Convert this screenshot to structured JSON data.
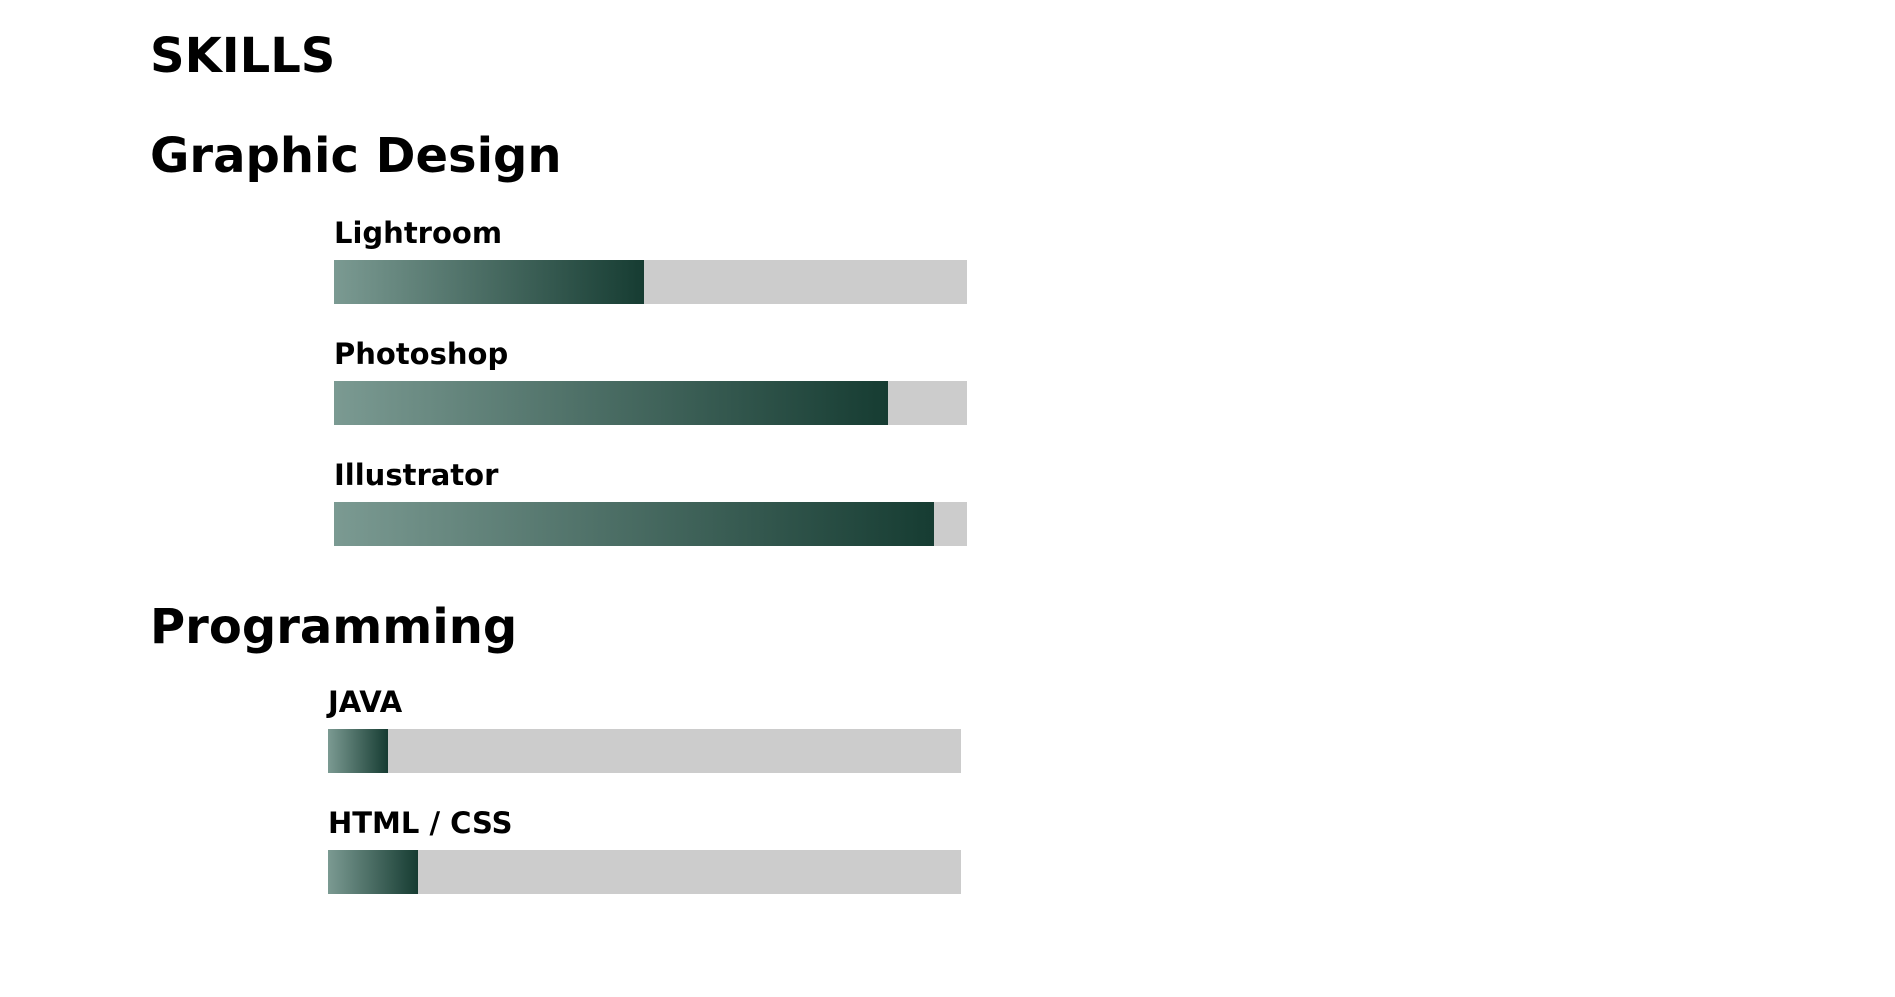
{
  "page": {
    "title": "SKILLS"
  },
  "sections": [
    {
      "title": "Graphic Design",
      "skills": [
        {
          "label": "Lightroom",
          "level": 0.49
        },
        {
          "label": "Photoshop",
          "level": 0.875
        },
        {
          "label": "Illustrator",
          "level": 0.948
        }
      ]
    },
    {
      "title": "Programming",
      "skills": [
        {
          "label": "JAVA",
          "level": 0.095
        },
        {
          "label": "HTML / CSS",
          "level": 0.142
        }
      ]
    }
  ],
  "colors": {
    "bar_track": "#cccccc",
    "bar_fill_start": "#7b9a92",
    "bar_fill_end": "#163c32"
  }
}
